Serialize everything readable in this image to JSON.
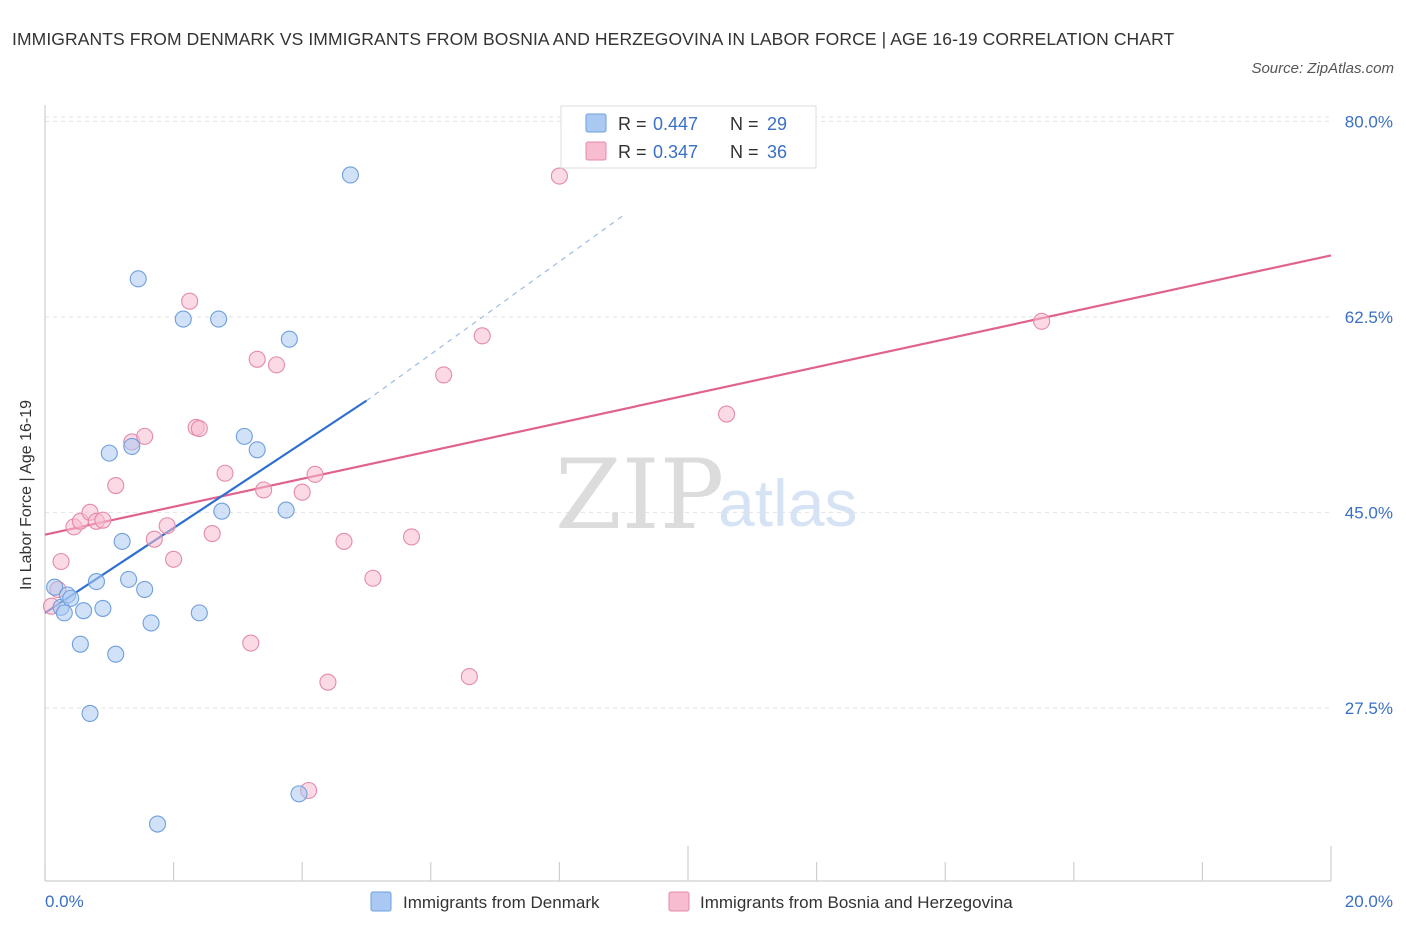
{
  "title": "IMMIGRANTS FROM DENMARK VS IMMIGRANTS FROM BOSNIA AND HERZEGOVINA IN LABOR FORCE | AGE 16-19 CORRELATION CHART",
  "source": "Source: ZipAtlas.com",
  "watermark": {
    "zip": "ZIP",
    "atlas": "atlas"
  },
  "legend": {
    "r_label": "R =",
    "n_label": "N =",
    "rows": [
      {
        "r": "0.447",
        "n": "29",
        "color": "#a9c8f2"
      },
      {
        "r": "0.347",
        "n": "36",
        "color": "#f7bcd0"
      }
    ]
  },
  "chart_data": {
    "type": "scatter",
    "ylabel": "In Labor Force | Age 16-19",
    "xlabel": "",
    "xlim": [
      0,
      20
    ],
    "ylim": [
      12,
      82
    ],
    "y_ticks": [
      27.5,
      45.0,
      62.5,
      80.0
    ],
    "y_tick_labels": [
      "27.5%",
      "45.0%",
      "62.5%",
      "80.0%"
    ],
    "x_tick_labels": [
      "0.0%",
      "20.0%"
    ],
    "series": [
      {
        "name": "Immigrants from Denmark",
        "color": "#a9c8f2",
        "stroke": "#6f9fdd",
        "line_color": "#2f6fd0",
        "trend": {
          "x0": 0.0,
          "y0": 36.0,
          "x1": 5.0,
          "y1": 55.0,
          "dash_to_x": 9.0,
          "dash_to_y": 71.6
        },
        "points": [
          [
            0.15,
            38.3
          ],
          [
            0.25,
            36.5
          ],
          [
            0.35,
            37.6
          ],
          [
            0.4,
            37.3
          ],
          [
            0.55,
            33.2
          ],
          [
            0.6,
            36.2
          ],
          [
            0.7,
            27.0
          ],
          [
            0.8,
            38.8
          ],
          [
            0.9,
            36.4
          ],
          [
            1.0,
            50.3
          ],
          [
            1.1,
            32.3
          ],
          [
            1.2,
            42.4
          ],
          [
            1.3,
            39.0
          ],
          [
            1.35,
            50.9
          ],
          [
            1.45,
            65.9
          ],
          [
            1.55,
            38.1
          ],
          [
            1.65,
            35.1
          ],
          [
            1.75,
            17.1
          ],
          [
            2.15,
            62.3
          ],
          [
            2.4,
            36.0
          ],
          [
            2.7,
            62.3
          ],
          [
            2.75,
            45.1
          ],
          [
            3.1,
            51.8
          ],
          [
            3.3,
            50.6
          ],
          [
            3.75,
            45.2
          ],
          [
            3.8,
            60.5
          ],
          [
            3.95,
            19.8
          ],
          [
            4.75,
            75.2
          ],
          [
            0.3,
            36.0
          ]
        ]
      },
      {
        "name": "Immigrants from Bosnia and Herzegovina",
        "color": "#f7bcd0",
        "stroke": "#e48aaa",
        "line_color": "#e0628e",
        "trend": {
          "x0": 0.0,
          "y0": 43.0,
          "x1": 20.0,
          "y1": 68.0
        },
        "points": [
          [
            0.1,
            36.6
          ],
          [
            0.2,
            38.1
          ],
          [
            0.25,
            40.6
          ],
          [
            0.45,
            43.7
          ],
          [
            0.55,
            44.2
          ],
          [
            0.7,
            45.0
          ],
          [
            0.8,
            44.2
          ],
          [
            0.9,
            44.3
          ],
          [
            1.1,
            47.4
          ],
          [
            1.35,
            51.3
          ],
          [
            1.55,
            51.8
          ],
          [
            1.7,
            42.6
          ],
          [
            1.9,
            43.8
          ],
          [
            2.0,
            40.8
          ],
          [
            2.25,
            63.9
          ],
          [
            2.35,
            52.6
          ],
          [
            2.4,
            52.5
          ],
          [
            2.6,
            43.1
          ],
          [
            2.8,
            48.5
          ],
          [
            3.2,
            33.3
          ],
          [
            3.3,
            58.7
          ],
          [
            3.4,
            47.0
          ],
          [
            3.6,
            58.2
          ],
          [
            4.0,
            46.8
          ],
          [
            4.1,
            20.1
          ],
          [
            4.2,
            48.4
          ],
          [
            4.4,
            29.8
          ],
          [
            4.65,
            42.4
          ],
          [
            5.1,
            39.1
          ],
          [
            5.7,
            42.8
          ],
          [
            6.2,
            57.3
          ],
          [
            6.6,
            30.3
          ],
          [
            6.8,
            60.8
          ],
          [
            8.0,
            75.1
          ],
          [
            10.6,
            53.8
          ],
          [
            15.5,
            62.1
          ]
        ]
      }
    ]
  }
}
